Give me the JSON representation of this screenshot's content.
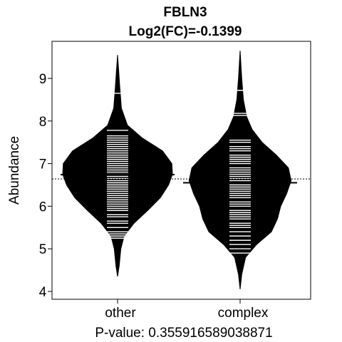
{
  "chart_data": {
    "type": "beanplot",
    "title": "FBLN3",
    "subtitle": "Log2(FC)=-0.1399",
    "xlabel": "P-value: 0.355916589038871",
    "ylabel": "Abundance",
    "categories": [
      "other",
      "complex"
    ],
    "ylim": [
      3.8,
      9.8
    ],
    "yticks": [
      4,
      5,
      6,
      7,
      8,
      9
    ],
    "overall_mean": 6.64,
    "grid": false,
    "series": [
      {
        "category": "other",
        "group_mean": 6.74,
        "range": [
          4.35,
          9.55
        ],
        "density": [
          {
            "y": 4.35,
            "w": 0.0
          },
          {
            "y": 4.6,
            "w": 0.03
          },
          {
            "y": 5.0,
            "w": 0.06
          },
          {
            "y": 5.3,
            "w": 0.12
          },
          {
            "y": 5.6,
            "w": 0.3
          },
          {
            "y": 5.9,
            "w": 0.55
          },
          {
            "y": 6.2,
            "w": 0.78
          },
          {
            "y": 6.5,
            "w": 0.93
          },
          {
            "y": 6.75,
            "w": 1.0
          },
          {
            "y": 7.0,
            "w": 0.99
          },
          {
            "y": 7.3,
            "w": 0.82
          },
          {
            "y": 7.6,
            "w": 0.45
          },
          {
            "y": 7.9,
            "w": 0.18
          },
          {
            "y": 8.3,
            "w": 0.07
          },
          {
            "y": 8.8,
            "w": 0.04
          },
          {
            "y": 9.2,
            "w": 0.02
          },
          {
            "y": 9.55,
            "w": 0.0
          }
        ],
        "observations": [
          5.25,
          5.3,
          5.35,
          5.4,
          5.5,
          5.6,
          5.65,
          5.75,
          5.8,
          5.9,
          5.95,
          6.0,
          6.05,
          6.1,
          6.15,
          6.2,
          6.25,
          6.3,
          6.35,
          6.4,
          6.45,
          6.5,
          6.55,
          6.6,
          6.65,
          6.7,
          6.75,
          6.8,
          6.85,
          6.9,
          6.95,
          7.0,
          7.05,
          7.1,
          7.15,
          7.2,
          7.25,
          7.3,
          7.35,
          7.4,
          7.45,
          7.5,
          7.55,
          7.6,
          7.65,
          7.78,
          8.65
        ]
      },
      {
        "category": "complex",
        "group_mean": 6.55,
        "range": [
          4.05,
          9.65
        ],
        "density": [
          {
            "y": 4.05,
            "w": 0.0
          },
          {
            "y": 4.4,
            "w": 0.03
          },
          {
            "y": 4.8,
            "w": 0.1
          },
          {
            "y": 5.1,
            "w": 0.3
          },
          {
            "y": 5.4,
            "w": 0.57
          },
          {
            "y": 5.7,
            "w": 0.68
          },
          {
            "y": 6.0,
            "w": 0.74
          },
          {
            "y": 6.3,
            "w": 0.85
          },
          {
            "y": 6.6,
            "w": 0.93
          },
          {
            "y": 6.9,
            "w": 0.88
          },
          {
            "y": 7.2,
            "w": 0.66
          },
          {
            "y": 7.5,
            "w": 0.4
          },
          {
            "y": 7.8,
            "w": 0.22
          },
          {
            "y": 8.1,
            "w": 0.12
          },
          {
            "y": 8.5,
            "w": 0.06
          },
          {
            "y": 9.0,
            "w": 0.03
          },
          {
            "y": 9.65,
            "w": 0.0
          }
        ],
        "observations": [
          4.9,
          5.0,
          5.1,
          5.2,
          5.3,
          5.4,
          5.5,
          5.55,
          5.6,
          5.7,
          5.75,
          5.8,
          5.85,
          5.9,
          6.0,
          6.05,
          6.1,
          6.2,
          6.25,
          6.3,
          6.35,
          6.4,
          6.45,
          6.5,
          6.55,
          6.6,
          6.65,
          6.7,
          6.75,
          6.8,
          6.85,
          6.9,
          7.0,
          7.05,
          7.1,
          7.15,
          7.2,
          7.3,
          7.35,
          7.4,
          7.5,
          7.55,
          8.13,
          8.18,
          8.72
        ]
      }
    ]
  }
}
